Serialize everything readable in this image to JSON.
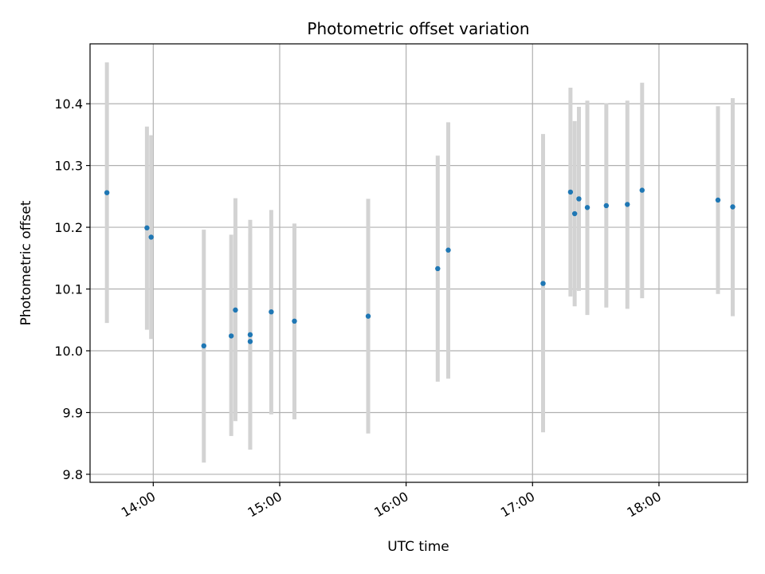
{
  "chart_data": {
    "type": "scatter",
    "title": "Photometric offset variation",
    "xlabel": "UTC time",
    "ylabel": "Photometric offset",
    "x_ticks": [
      "14:00",
      "15:00",
      "16:00",
      "17:00",
      "18:00"
    ],
    "y_ticks": [
      "9.8",
      "9.9",
      "10.0",
      "10.1",
      "10.2",
      "10.3",
      "10.4"
    ],
    "xlim": [
      "13:30",
      "18:42"
    ],
    "ylim": [
      9.787,
      10.497
    ],
    "grid": true,
    "errorbar_color": "#d3d3d3",
    "point_color": "#1f77b4",
    "points": [
      {
        "x": "13:38",
        "y": 10.256,
        "err_low": 10.045,
        "err_high": 10.467
      },
      {
        "x": "13:57",
        "y": 10.199,
        "err_low": 10.034,
        "err_high": 10.363
      },
      {
        "x": "13:59",
        "y": 10.184,
        "err_low": 10.019,
        "err_high": 10.349
      },
      {
        "x": "14:24",
        "y": 10.008,
        "err_low": 9.819,
        "err_high": 10.196
      },
      {
        "x": "14:37",
        "y": 10.024,
        "err_low": 9.862,
        "err_high": 10.188
      },
      {
        "x": "14:39",
        "y": 10.066,
        "err_low": 9.886,
        "err_high": 10.247
      },
      {
        "x": "14:46",
        "y": 10.026,
        "err_low": 9.84,
        "err_high": 10.212
      },
      {
        "x": "14:46",
        "y": 10.015,
        "err_low": 9.84,
        "err_high": 10.19
      },
      {
        "x": "14:56",
        "y": 10.063,
        "err_low": 9.897,
        "err_high": 10.228
      },
      {
        "x": "15:07",
        "y": 10.048,
        "err_low": 9.889,
        "err_high": 10.206
      },
      {
        "x": "15:42",
        "y": 10.056,
        "err_low": 9.866,
        "err_high": 10.246
      },
      {
        "x": "16:15",
        "y": 10.133,
        "err_low": 9.95,
        "err_high": 10.316
      },
      {
        "x": "16:20",
        "y": 10.163,
        "err_low": 9.955,
        "err_high": 10.37
      },
      {
        "x": "17:05",
        "y": 10.109,
        "err_low": 9.868,
        "err_high": 10.351
      },
      {
        "x": "17:18",
        "y": 10.257,
        "err_low": 10.088,
        "err_high": 10.426
      },
      {
        "x": "17:20",
        "y": 10.222,
        "err_low": 10.072,
        "err_high": 10.372
      },
      {
        "x": "17:22",
        "y": 10.246,
        "err_low": 10.097,
        "err_high": 10.395
      },
      {
        "x": "17:26",
        "y": 10.232,
        "err_low": 10.058,
        "err_high": 10.405
      },
      {
        "x": "17:35",
        "y": 10.235,
        "err_low": 10.07,
        "err_high": 10.401
      },
      {
        "x": "17:45",
        "y": 10.237,
        "err_low": 10.068,
        "err_high": 10.405
      },
      {
        "x": "17:52",
        "y": 10.26,
        "err_low": 10.085,
        "err_high": 10.434
      },
      {
        "x": "18:28",
        "y": 10.244,
        "err_low": 10.092,
        "err_high": 10.396
      },
      {
        "x": "18:35",
        "y": 10.233,
        "err_low": 10.056,
        "err_high": 10.409
      }
    ]
  }
}
